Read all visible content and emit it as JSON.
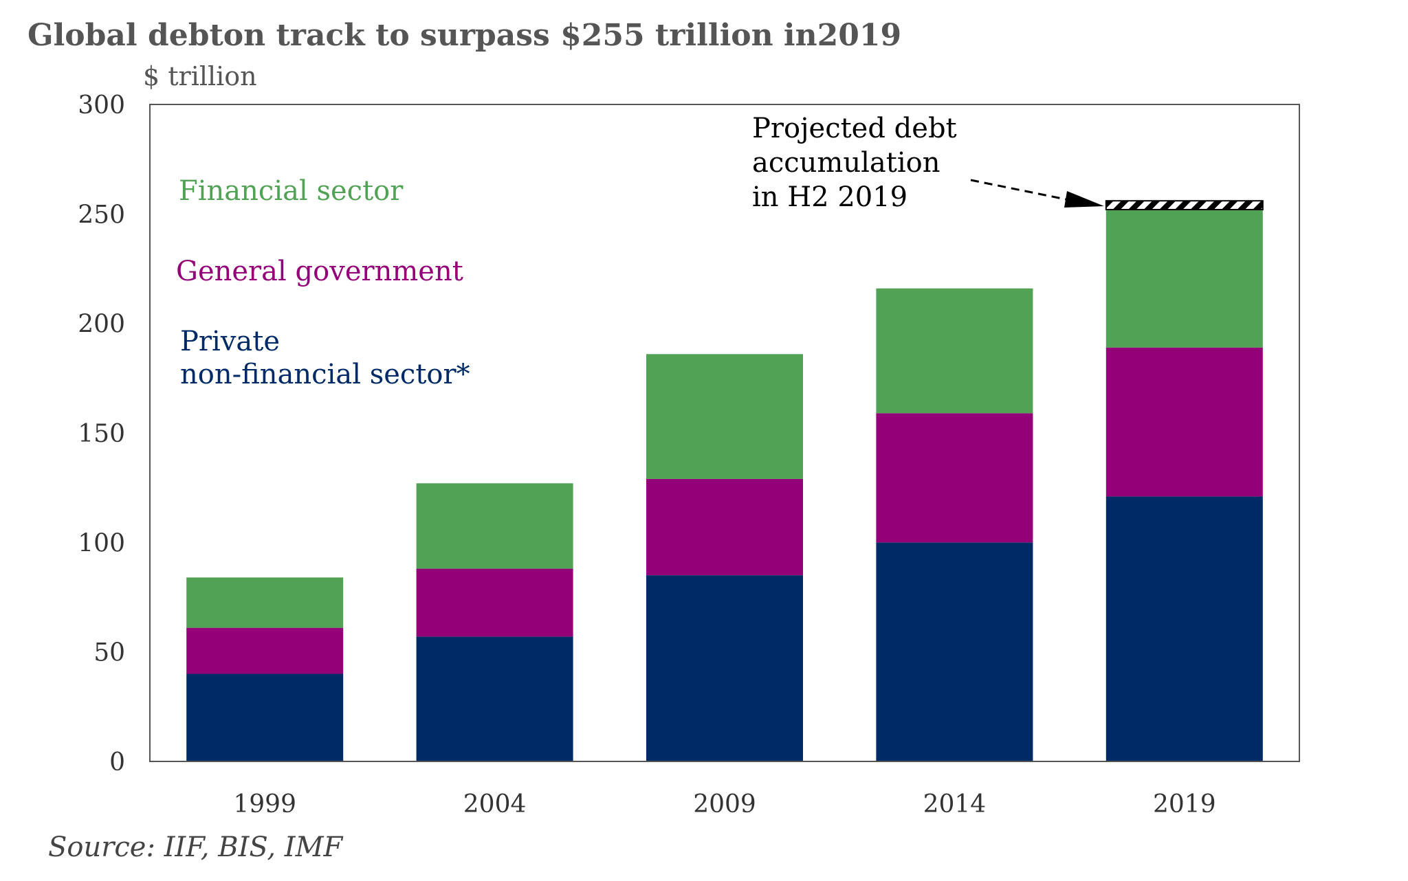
{
  "chart_data": {
    "type": "bar",
    "stacked": true,
    "title": "Global debton track to surpass $255 trillion in2019",
    "ylabel": "$ trillion",
    "xlabel": "",
    "ylim": [
      0,
      300
    ],
    "yticks": [
      0,
      50,
      100,
      150,
      200,
      250,
      300
    ],
    "categories": [
      "1999",
      "2004",
      "2009",
      "2014",
      "2019"
    ],
    "series": [
      {
        "name": "Private non-financial sector*",
        "color": "#002a66",
        "values": [
          40,
          57,
          85,
          100,
          121
        ]
      },
      {
        "name": "General government",
        "color": "#940078",
        "values": [
          21,
          31,
          44,
          59,
          68
        ]
      },
      {
        "name": "Financial sector",
        "color": "#52a256",
        "values": [
          23,
          39,
          57,
          57,
          63
        ]
      }
    ],
    "projection": {
      "category": "2019",
      "base": 252,
      "top": 256,
      "label_lines": [
        "Projected debt",
        "accumulation",
        "in H2 2019"
      ]
    },
    "legend": {
      "placement": "left-inside",
      "lines": [
        {
          "text": "Financial sector",
          "color": "#52a256"
        },
        {
          "text": "General government",
          "color": "#940078"
        },
        {
          "text": "Private",
          "color": "#002a66"
        },
        {
          "text": "non-financial sector*",
          "color": "#002a66"
        }
      ]
    },
    "grid": false,
    "source": "Source: IIF, BIS, IMF"
  }
}
